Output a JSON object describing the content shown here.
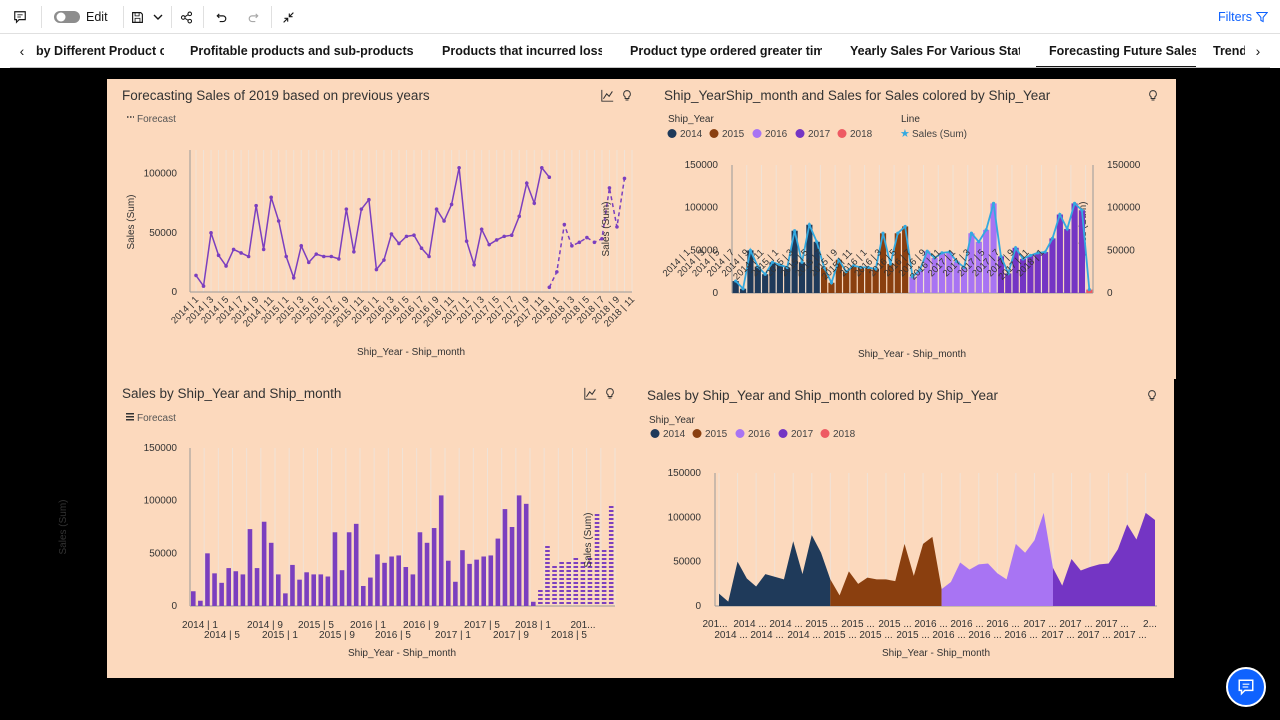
{
  "toolbar": {
    "edit_label": "Edit",
    "filters_label": "Filters",
    "icons": [
      "comment-icon",
      "toggle-switch",
      "save-icon",
      "chevron-down-icon",
      "share-icon",
      "undo-icon",
      "redo-icon",
      "collapse-icon",
      "filter-icon"
    ]
  },
  "tabs": {
    "items": [
      {
        "label": "by Different Product cat"
      },
      {
        "label": "Profitable products and sub-products in l"
      },
      {
        "label": "Products that incurred losses"
      },
      {
        "label": "Product type ordered greater times"
      },
      {
        "label": "Yearly Sales For Various States"
      },
      {
        "label": "Forecasting Future Sales"
      },
      {
        "label": "Trend"
      }
    ],
    "active": "Forecasting Future Sales"
  },
  "colors": {
    "panel_bg": "#fcd9bd",
    "line_purple": "#7b3fbf",
    "y2014": "#1f3a5a",
    "y2015": "#8a3f0f",
    "y2016": "#a874f3",
    "y2017": "#7435c4",
    "y2018": "#ee5a63",
    "line_blue": "#33a9e0",
    "accent": "#0f62fe"
  },
  "legend": {
    "forecast_label": "Forecast",
    "ship_year_title": "Ship_Year",
    "years": [
      "2014",
      "2015",
      "2016",
      "2017",
      "2018"
    ],
    "line_title": "Line",
    "line_entry": "Sales (Sum)"
  },
  "panels": {
    "p1": {
      "title": "Forecasting Sales of 2019 based on previous years",
      "ylabel": "Sales (Sum)",
      "xlabel": "Ship_Year - Ship_month"
    },
    "p2": {
      "title": "Ship_YearShip_month and Sales for Sales colored by Ship_Year",
      "ylabel": "Sales (Sum)",
      "ylabel2": "Sales (Sum)",
      "xlabel": "Ship_Year - Ship_month"
    },
    "p3": {
      "title": "Sales by Ship_Year and Ship_month",
      "ylabel": "Sales (Sum)",
      "xlabel": "Ship_Year - Ship_month"
    },
    "p4": {
      "title": "Sales by Ship_Year and Ship_month colored by Ship_Year",
      "ylabel": "Sales (Sum)",
      "xlabel": "Ship_Year - Ship_month"
    }
  },
  "chart_data": [
    {
      "type": "line",
      "title": "Forecasting Sales of 2019 based on previous years",
      "xlabel": "Ship_Year - Ship_month",
      "ylabel": "Sales (Sum)",
      "ylim": [
        0,
        120000
      ],
      "yticks": [
        0,
        50000,
        100000
      ],
      "xticks": [
        "2014 | 1",
        "2014 | 3",
        "2014 | 5",
        "2014 | 7",
        "2014 | 9",
        "2014 | 11",
        "2015 | 1",
        "2015 | 3",
        "2015 | 5",
        "2015 | 7",
        "2015 | 9",
        "2015 | 11",
        "2016 | 1",
        "2016 | 3",
        "2016 | 5",
        "2016 | 7",
        "2016 | 9",
        "2016 | 11",
        "2017 | 1",
        "2017 | 3",
        "2017 | 5",
        "2017 | 7",
        "2017 | 9",
        "2017 | 11",
        "2018 | 1",
        "2018 | 3",
        "2018 | 5",
        "2018 | 7",
        "2018 | 9",
        "2018 | 11"
      ],
      "series": [
        {
          "values": [
            14000,
            5000,
            50000,
            31000,
            22000,
            36000,
            33000,
            30000,
            73000,
            36000,
            80000,
            60000,
            30000,
            12000,
            39000,
            25000,
            32000,
            30000,
            30000,
            28000,
            70000,
            34000,
            70000,
            78000,
            19000,
            27000,
            49000,
            41000,
            47000,
            48000,
            37000,
            30000,
            70000,
            60000,
            74000,
            105000,
            43000,
            23000,
            53000,
            40000,
            44000,
            47000,
            48000,
            64000,
            92000,
            75000,
            105000,
            97000
          ]
        },
        {
          "name": "Forecast",
          "values": [
            4000,
            17000,
            57000,
            39000,
            42000,
            46000,
            42000,
            45000,
            88000,
            55000,
            96000
          ]
        }
      ]
    },
    {
      "type": "bar",
      "title": "Ship_YearShip_month and Sales for Sales colored by Ship_Year",
      "xlabel": "Ship_Year - Ship_month",
      "ylabel": "Sales (Sum)",
      "ylim": [
        0,
        150000
      ],
      "yticks": [
        0,
        50000,
        100000,
        150000
      ],
      "xticks": [
        "2014 | 1",
        "2014 | 3",
        "2014 | 5",
        "2014 | 7",
        "2014 | 9",
        "2014 | 11",
        "2015 | 1",
        "2015 | 3",
        "2015 | 5",
        "2015 | 7",
        "2015 | 9",
        "2015 | 11",
        "2016 | 1",
        "2016 | 3",
        "2016 | 5",
        "2016 | 7",
        "2016 | 9",
        "2016 | 11",
        "2017 | 1",
        "2017 | 3",
        "2017 | 5",
        "2017 | 7",
        "2017 | 9",
        "2017 | 11",
        "2018 | 1"
      ],
      "series": [
        {
          "name": "2014",
          "values": [
            14000,
            5000,
            50000,
            31000,
            22000,
            36000,
            33000,
            30000,
            73000,
            36000,
            80000,
            60000
          ]
        },
        {
          "name": "2015",
          "values": [
            30000,
            12000,
            39000,
            25000,
            32000,
            30000,
            30000,
            28000,
            70000,
            34000,
            70000,
            78000
          ]
        },
        {
          "name": "2016",
          "values": [
            19000,
            27000,
            49000,
            41000,
            47000,
            48000,
            37000,
            30000,
            70000,
            60000,
            74000,
            105000
          ]
        },
        {
          "name": "2017",
          "values": [
            43000,
            23000,
            53000,
            40000,
            44000,
            47000,
            48000,
            64000,
            92000,
            75000,
            105000,
            97000
          ]
        },
        {
          "name": "2018",
          "values": [
            4000
          ]
        },
        {
          "name": "Sales (Sum)",
          "values": [
            14000,
            5000,
            50000,
            31000,
            22000,
            36000,
            33000,
            30000,
            73000,
            36000,
            80000,
            60000,
            30000,
            12000,
            39000,
            25000,
            32000,
            30000,
            30000,
            28000,
            70000,
            34000,
            70000,
            78000,
            19000,
            27000,
            49000,
            41000,
            47000,
            48000,
            37000,
            30000,
            70000,
            60000,
            74000,
            105000,
            43000,
            23000,
            53000,
            40000,
            44000,
            47000,
            48000,
            64000,
            92000,
            75000,
            105000,
            97000,
            4000
          ]
        }
      ]
    },
    {
      "type": "bar",
      "title": "Sales by Ship_Year and Ship_month",
      "xlabel": "Ship_Year - Ship_month",
      "ylabel": "Sales (Sum)",
      "ylim": [
        0,
        150000
      ],
      "yticks": [
        0,
        50000,
        100000,
        150000
      ],
      "xticks_row1": [
        "2014 | 1",
        "2014 | 9",
        "2015 | 5",
        "2016 | 1",
        "2016 | 9",
        "2017 | 5",
        "2018 | 1",
        "201..."
      ],
      "xticks_row2": [
        "2014 | 5",
        "2015 | 1",
        "2015 | 9",
        "2016 | 5",
        "2017 | 1",
        "2017 | 9",
        "2018 | 5"
      ],
      "series": [
        {
          "values": [
            14000,
            5000,
            50000,
            31000,
            22000,
            36000,
            33000,
            30000,
            73000,
            36000,
            80000,
            60000,
            30000,
            12000,
            39000,
            25000,
            32000,
            30000,
            30000,
            28000,
            70000,
            34000,
            70000,
            78000,
            19000,
            27000,
            49000,
            41000,
            47000,
            48000,
            37000,
            30000,
            70000,
            60000,
            74000,
            105000,
            43000,
            23000,
            53000,
            40000,
            44000,
            47000,
            48000,
            64000,
            92000,
            75000,
            105000,
            97000,
            4000
          ]
        },
        {
          "name": "Forecast",
          "values": [
            17000,
            57000,
            39000,
            40000,
            42000,
            46000,
            42000,
            45000,
            88000,
            55000,
            96000
          ]
        }
      ]
    },
    {
      "type": "area",
      "title": "Sales by Ship_Year and Ship_month colored by Ship_Year",
      "xlabel": "Ship_Year - Ship_month",
      "ylabel": "Sales (Sum)",
      "ylim": [
        0,
        150000
      ],
      "yticks": [
        0,
        50000,
        100000,
        150000
      ],
      "xticks_row1": [
        "201...",
        "2014 ...",
        "2014 ...",
        "2015 ...",
        "2015 ...",
        "2015 ...",
        "2016 ...",
        "2016 ...",
        "2016 ...",
        "2017 ...",
        "2017 ...",
        "2017 ...",
        "2..."
      ],
      "xticks_row2": [
        "2014 ...",
        "2014 ...",
        "2014 ...",
        "2015 ...",
        "2015 ...",
        "2015 ...",
        "2016 ...",
        "2016 ...",
        "2016 ...",
        "2017 ...",
        "2017 ...",
        "2017 ..."
      ],
      "series": [
        {
          "name": "2014",
          "values": [
            14000,
            5000,
            50000,
            31000,
            22000,
            36000,
            33000,
            30000,
            73000,
            36000,
            80000,
            60000
          ]
        },
        {
          "name": "2015",
          "values": [
            30000,
            12000,
            39000,
            25000,
            32000,
            30000,
            30000,
            28000,
            70000,
            34000,
            70000,
            78000
          ]
        },
        {
          "name": "2016",
          "values": [
            19000,
            27000,
            49000,
            41000,
            47000,
            48000,
            37000,
            30000,
            70000,
            60000,
            74000,
            105000
          ]
        },
        {
          "name": "2017",
          "values": [
            43000,
            23000,
            53000,
            40000,
            44000,
            47000,
            48000,
            64000,
            92000,
            75000,
            105000,
            97000
          ]
        }
      ]
    }
  ]
}
